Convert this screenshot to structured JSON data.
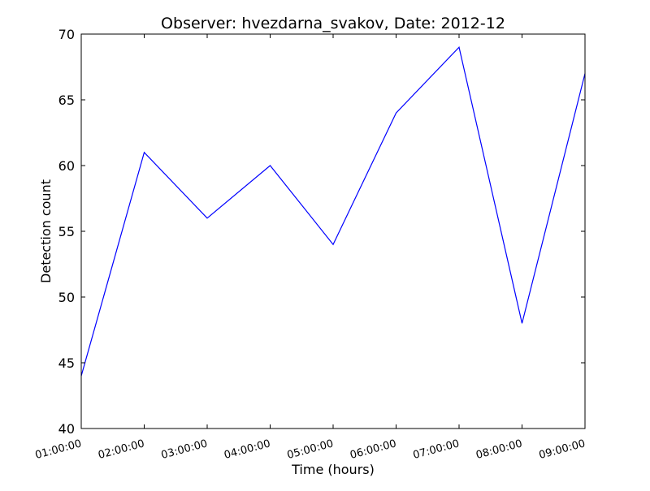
{
  "chart_data": {
    "type": "line",
    "title": "Observer: hvezdarna_svakov, Date: 2012-12",
    "xlabel": "Time (hours)",
    "ylabel": "Detection count",
    "categories": [
      "01:00:00",
      "02:00:00",
      "03:00:00",
      "04:00:00",
      "05:00:00",
      "06:00:00",
      "07:00:00",
      "08:00:00",
      "09:00:00"
    ],
    "series": [
      {
        "values": [
          44,
          61,
          56,
          60,
          54,
          64,
          69,
          48,
          67
        ],
        "color": "#0000ff"
      }
    ],
    "ylim": [
      40,
      70
    ],
    "yticks": [
      40,
      45,
      50,
      55,
      60,
      65,
      70
    ],
    "grid": false,
    "x_tick_rotation_deg": -15
  }
}
